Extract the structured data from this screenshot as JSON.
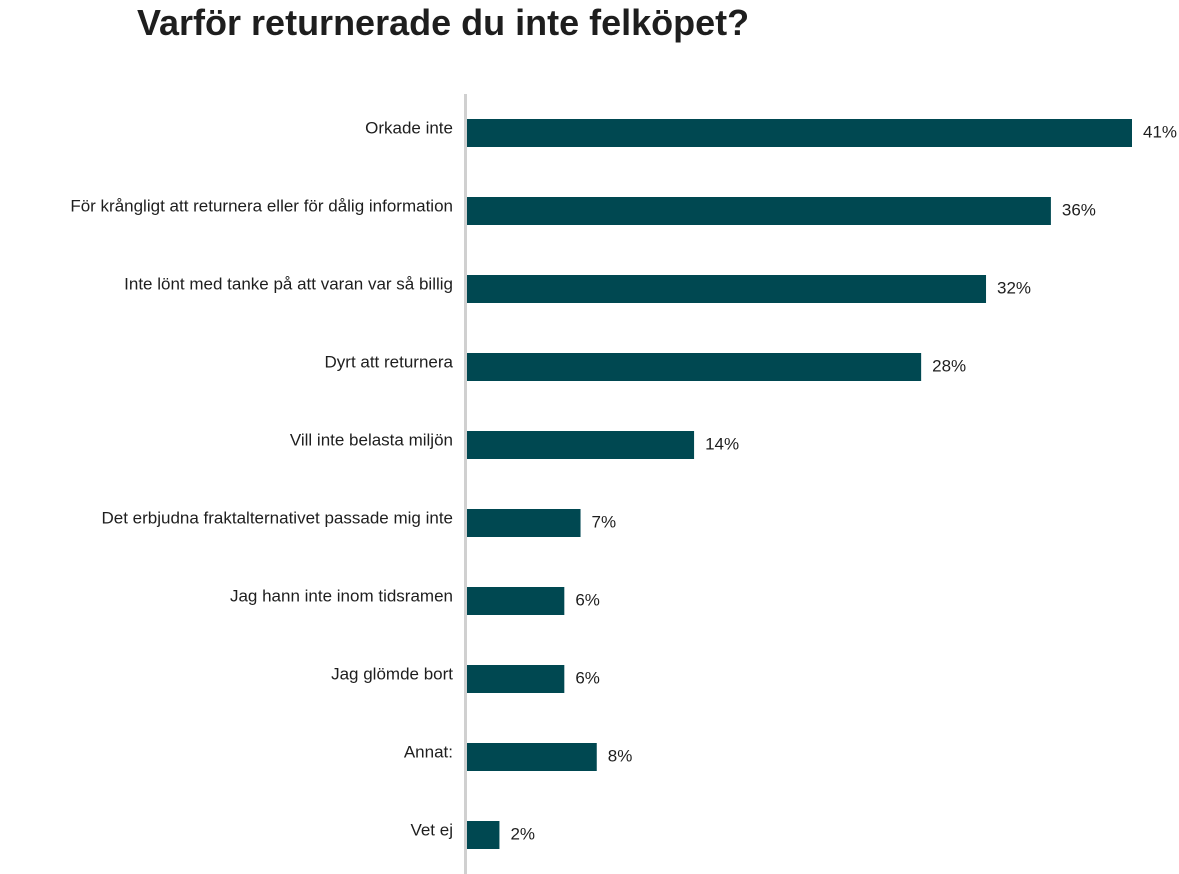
{
  "chart_data": {
    "type": "bar",
    "orientation": "horizontal",
    "title": "Varför returnerade du inte felköpet?",
    "categories": [
      "Orkade inte",
      "För krångligt att returnera eller för dålig information",
      "Inte lönt med tanke på att varan var så billig",
      "Dyrt att returnera",
      "Vill inte belasta miljön",
      "Det erbjudna fraktalternativet passade mig inte",
      "Jag hann inte inom tidsramen",
      "Jag glömde bort",
      "Annat:",
      "Vet ej"
    ],
    "values": [
      41,
      36,
      32,
      28,
      14,
      7,
      6,
      6,
      8,
      2
    ],
    "value_labels": [
      "41%",
      "36%",
      "32%",
      "28%",
      "14%",
      "7%",
      "6%",
      "6%",
      "8%",
      "2%"
    ],
    "unit": "%",
    "xlim": [
      0,
      41
    ],
    "grid": false,
    "legend": "none",
    "colors": {
      "bar": "#004851",
      "axis": "#d0d0d0",
      "text": "#1e1e1e"
    }
  }
}
